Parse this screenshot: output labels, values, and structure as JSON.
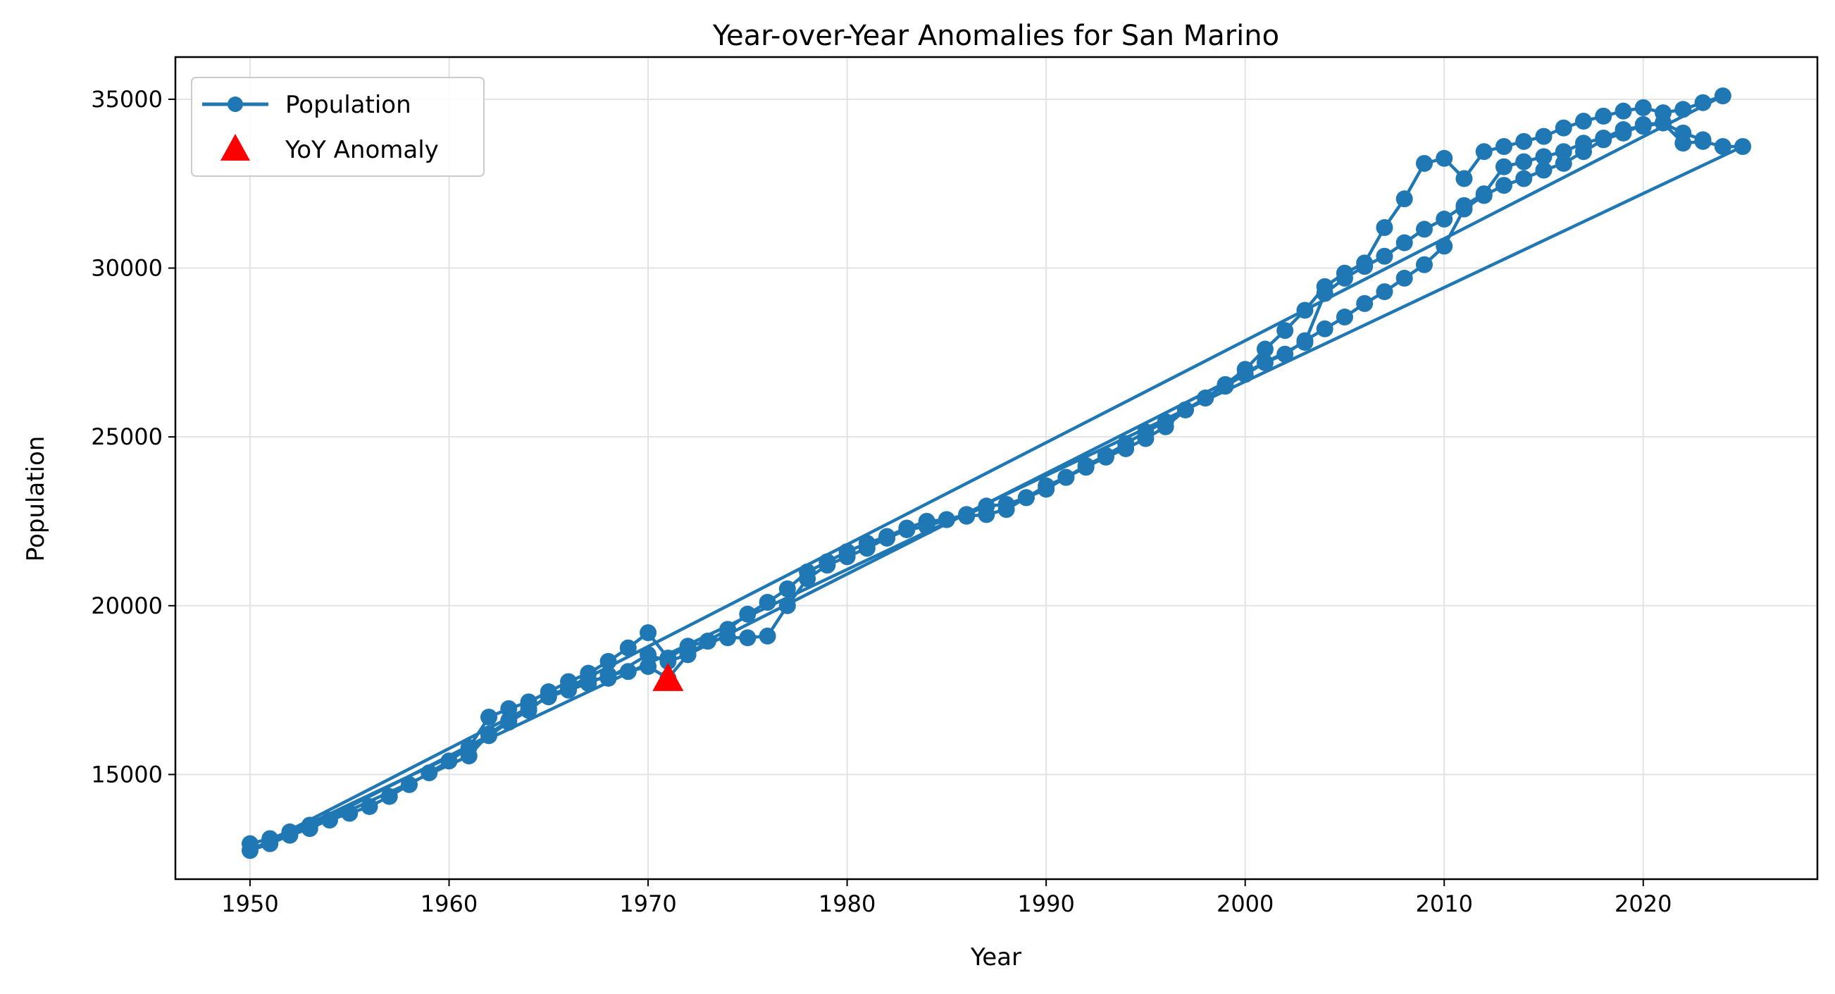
{
  "chart_data": {
    "type": "line",
    "title": "Year-over-Year Anomalies for San Marino",
    "xlabel": "Year",
    "ylabel": "Population",
    "xlim": [
      1946.25,
      2028.75
    ],
    "ylim": [
      11900,
      36250
    ],
    "xticks": [
      1950,
      1960,
      1970,
      1980,
      1990,
      2000,
      2010,
      2020
    ],
    "yticks": [
      15000,
      20000,
      25000,
      30000,
      35000
    ],
    "grid": true,
    "legend": {
      "placement": "top-left",
      "entries": [
        "Population",
        "YoY Anomaly"
      ]
    },
    "series": [
      {
        "name": "Population",
        "color": "#1f77b4",
        "marker": "circle",
        "points": [
          [
            1950,
            12950
          ],
          [
            1951,
            13100
          ],
          [
            1952,
            13300
          ],
          [
            1953,
            13500
          ],
          [
            1954,
            13650
          ],
          [
            1955,
            13850
          ],
          [
            1956,
            14050
          ],
          [
            1957,
            14350
          ],
          [
            1958,
            14700
          ],
          [
            1959,
            15050
          ],
          [
            1960,
            15400
          ],
          [
            1961,
            15800
          ],
          [
            1962,
            16700
          ],
          [
            1963,
            16950
          ],
          [
            1964,
            17150
          ],
          [
            1965,
            17450
          ],
          [
            1966,
            17750
          ],
          [
            1967,
            18000
          ],
          [
            1968,
            18350
          ],
          [
            1969,
            18750
          ],
          [
            1970,
            19200
          ],
          [
            1971,
            18450
          ],
          [
            1972,
            18800
          ],
          [
            1973,
            18950
          ],
          [
            1974,
            19300
          ],
          [
            1975,
            19750
          ],
          [
            1976,
            20100
          ],
          [
            1977,
            20500
          ],
          [
            1978,
            21000
          ],
          [
            1979,
            21300
          ],
          [
            1980,
            21600
          ],
          [
            1981,
            21850
          ],
          [
            1982,
            22050
          ],
          [
            1983,
            22300
          ],
          [
            1984,
            22500
          ],
          [
            1985,
            22550
          ],
          [
            1986,
            22700
          ],
          [
            1987,
            22950
          ],
          [
            1988,
            23000
          ],
          [
            1989,
            23200
          ],
          [
            1990,
            23550
          ],
          [
            1991,
            23800
          ],
          [
            1992,
            24150
          ],
          [
            1993,
            24450
          ],
          [
            1994,
            24800
          ],
          [
            1995,
            25150
          ],
          [
            1996,
            25450
          ],
          [
            1997,
            25800
          ],
          [
            1998,
            26150
          ],
          [
            1999,
            26550
          ],
          [
            2000,
            27000
          ],
          [
            2001,
            27600
          ],
          [
            2002,
            28150
          ],
          [
            2003,
            28750
          ],
          [
            2004,
            29450
          ],
          [
            2005,
            29850
          ],
          [
            2006,
            30150
          ],
          [
            2007,
            31200
          ],
          [
            2008,
            32050
          ],
          [
            2009,
            33100
          ],
          [
            2010,
            33250
          ],
          [
            2011,
            32650
          ],
          [
            2012,
            33450
          ],
          [
            2013,
            33600
          ],
          [
            2014,
            33750
          ],
          [
            2015,
            33900
          ],
          [
            2016,
            34150
          ],
          [
            2017,
            34350
          ],
          [
            2018,
            34500
          ],
          [
            2019,
            34650
          ],
          [
            2020,
            34750
          ],
          [
            2021,
            34600
          ],
          [
            2022,
            34700
          ],
          [
            2023,
            34900
          ],
          [
            2024,
            35100
          ],
          [
            1950,
            12750
          ],
          [
            1951,
            12950
          ],
          [
            1952,
            13200
          ],
          [
            1953,
            13400
          ],
          [
            1961,
            15550
          ],
          [
            1962,
            16200
          ],
          [
            1963,
            16600
          ],
          [
            1964,
            16950
          ],
          [
            1965,
            17300
          ],
          [
            1966,
            17500
          ],
          [
            1967,
            17700
          ],
          [
            1968,
            17950
          ],
          [
            1969,
            18050
          ],
          [
            1970,
            18200
          ],
          [
            1971,
            17850
          ],
          [
            1972,
            18550
          ],
          [
            1973,
            18950
          ],
          [
            1974,
            19050
          ],
          [
            1975,
            19050
          ],
          [
            1976,
            19100
          ],
          [
            1977,
            20000
          ],
          [
            1978,
            20800
          ],
          [
            1979,
            21200
          ],
          [
            1980,
            21450
          ],
          [
            1981,
            21700
          ],
          [
            1982,
            22000
          ],
          [
            1983,
            22250
          ],
          [
            1984,
            22350
          ],
          [
            1985,
            22550
          ],
          [
            1986,
            22650
          ],
          [
            1987,
            22700
          ],
          [
            1988,
            22850
          ],
          [
            1989,
            23200
          ],
          [
            1990,
            23450
          ],
          [
            1991,
            23800
          ],
          [
            1992,
            24100
          ],
          [
            1993,
            24400
          ],
          [
            1994,
            24650
          ],
          [
            1995,
            24950
          ],
          [
            1996,
            25300
          ],
          [
            1997,
            25800
          ],
          [
            1998,
            26150
          ],
          [
            1999,
            26500
          ],
          [
            2000,
            26850
          ],
          [
            2001,
            27200
          ],
          [
            2002,
            27450
          ],
          [
            2003,
            27850
          ],
          [
            2004,
            28200
          ],
          [
            2005,
            28550
          ],
          [
            2006,
            28950
          ],
          [
            2007,
            29300
          ],
          [
            2008,
            29700
          ],
          [
            2009,
            30100
          ],
          [
            2010,
            30650
          ],
          [
            2011,
            31750
          ],
          [
            2012,
            32150
          ],
          [
            2013,
            32450
          ],
          [
            2014,
            32650
          ],
          [
            2015,
            32900
          ],
          [
            2016,
            33100
          ],
          [
            2017,
            33450
          ],
          [
            2018,
            33800
          ],
          [
            2019,
            34000
          ],
          [
            2020,
            34250
          ],
          [
            2021,
            34300
          ],
          [
            2022,
            33700
          ],
          [
            2023,
            33750
          ],
          [
            2024,
            33600
          ],
          [
            2025,
            33600
          ],
          [
            1951,
            13000
          ],
          [
            1952,
            13250
          ],
          [
            1953,
            13450
          ],
          [
            1962,
            16150
          ],
          [
            1963,
            16550
          ],
          [
            1964,
            16900
          ],
          [
            1965,
            17350
          ],
          [
            1966,
            17550
          ],
          [
            1967,
            17800
          ],
          [
            1968,
            17850
          ],
          [
            1970,
            18550
          ],
          [
            1971,
            18350
          ],
          [
            1972,
            18550
          ],
          [
            2003,
            27800
          ],
          [
            2004,
            29250
          ],
          [
            2005,
            29700
          ],
          [
            2006,
            30050
          ],
          [
            2007,
            30350
          ],
          [
            2008,
            30750
          ],
          [
            2009,
            31150
          ],
          [
            2010,
            31450
          ],
          [
            2011,
            31850
          ],
          [
            2012,
            32200
          ],
          [
            2013,
            33000
          ],
          [
            2014,
            33150
          ],
          [
            2015,
            33300
          ],
          [
            2016,
            33450
          ],
          [
            2017,
            33700
          ],
          [
            2018,
            33850
          ],
          [
            2019,
            34100
          ],
          [
            2020,
            34200
          ],
          [
            2021,
            34300
          ],
          [
            2022,
            34000
          ],
          [
            2023,
            33800
          ]
        ]
      },
      {
        "name": "YoY Anomaly",
        "color": "#ff0000",
        "marker": "triangle",
        "points": [
          [
            1971,
            17850
          ]
        ]
      }
    ]
  }
}
